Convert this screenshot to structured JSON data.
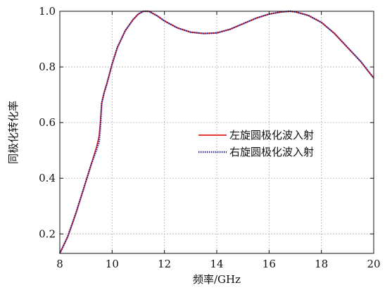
{
  "chart_data": {
    "type": "line",
    "title": "",
    "xlabel": "频率/GHz",
    "ylabel": "同极化转化率",
    "xlim": [
      8,
      20
    ],
    "ylim": [
      0.13,
      1.0
    ],
    "x_ticks": [
      "8",
      "10",
      "12",
      "14",
      "16",
      "18",
      "20"
    ],
    "y_ticks": [
      "0.2",
      "0.4",
      "0.6",
      "0.8",
      "1.0"
    ],
    "grid": true,
    "legend_position": "center-right",
    "series": [
      {
        "name": "左旋圆极化波入射",
        "color": "#e02020",
        "style": "solid",
        "x": [
          8.0,
          8.3,
          8.6,
          8.9,
          9.2,
          9.4,
          9.5,
          9.55,
          9.6,
          9.7,
          9.8,
          10.0,
          10.2,
          10.5,
          10.8,
          11.0,
          11.2,
          11.4,
          11.7,
          12.0,
          12.5,
          13.0,
          13.5,
          14.0,
          14.5,
          15.0,
          15.5,
          16.0,
          16.5,
          16.8,
          17.0,
          17.5,
          18.0,
          18.5,
          19.0,
          19.5,
          20.0
        ],
        "y": [
          0.13,
          0.19,
          0.27,
          0.36,
          0.45,
          0.51,
          0.55,
          0.6,
          0.67,
          0.71,
          0.74,
          0.81,
          0.87,
          0.93,
          0.97,
          0.99,
          1.0,
          1.0,
          0.985,
          0.965,
          0.94,
          0.925,
          0.92,
          0.922,
          0.935,
          0.955,
          0.975,
          0.99,
          0.998,
          1.0,
          0.998,
          0.985,
          0.96,
          0.92,
          0.87,
          0.82,
          0.76
        ]
      },
      {
        "name": "右旋圆极化波入射",
        "color": "#2a2a9a",
        "style": "dotted",
        "x": [
          8.0,
          8.3,
          8.6,
          8.9,
          9.2,
          9.4,
          9.5,
          9.55,
          9.6,
          9.7,
          9.8,
          10.0,
          10.2,
          10.5,
          10.8,
          11.0,
          11.2,
          11.4,
          11.7,
          12.0,
          12.5,
          13.0,
          13.5,
          14.0,
          14.5,
          15.0,
          15.5,
          16.0,
          16.5,
          16.8,
          17.0,
          17.5,
          18.0,
          18.5,
          19.0,
          19.5,
          20.0
        ],
        "y": [
          0.13,
          0.19,
          0.27,
          0.36,
          0.45,
          0.5,
          0.53,
          0.58,
          0.67,
          0.71,
          0.74,
          0.81,
          0.87,
          0.93,
          0.97,
          0.99,
          1.0,
          1.0,
          0.985,
          0.965,
          0.94,
          0.925,
          0.92,
          0.922,
          0.935,
          0.955,
          0.975,
          0.99,
          0.998,
          1.0,
          0.998,
          0.985,
          0.96,
          0.92,
          0.87,
          0.82,
          0.76
        ]
      }
    ]
  }
}
